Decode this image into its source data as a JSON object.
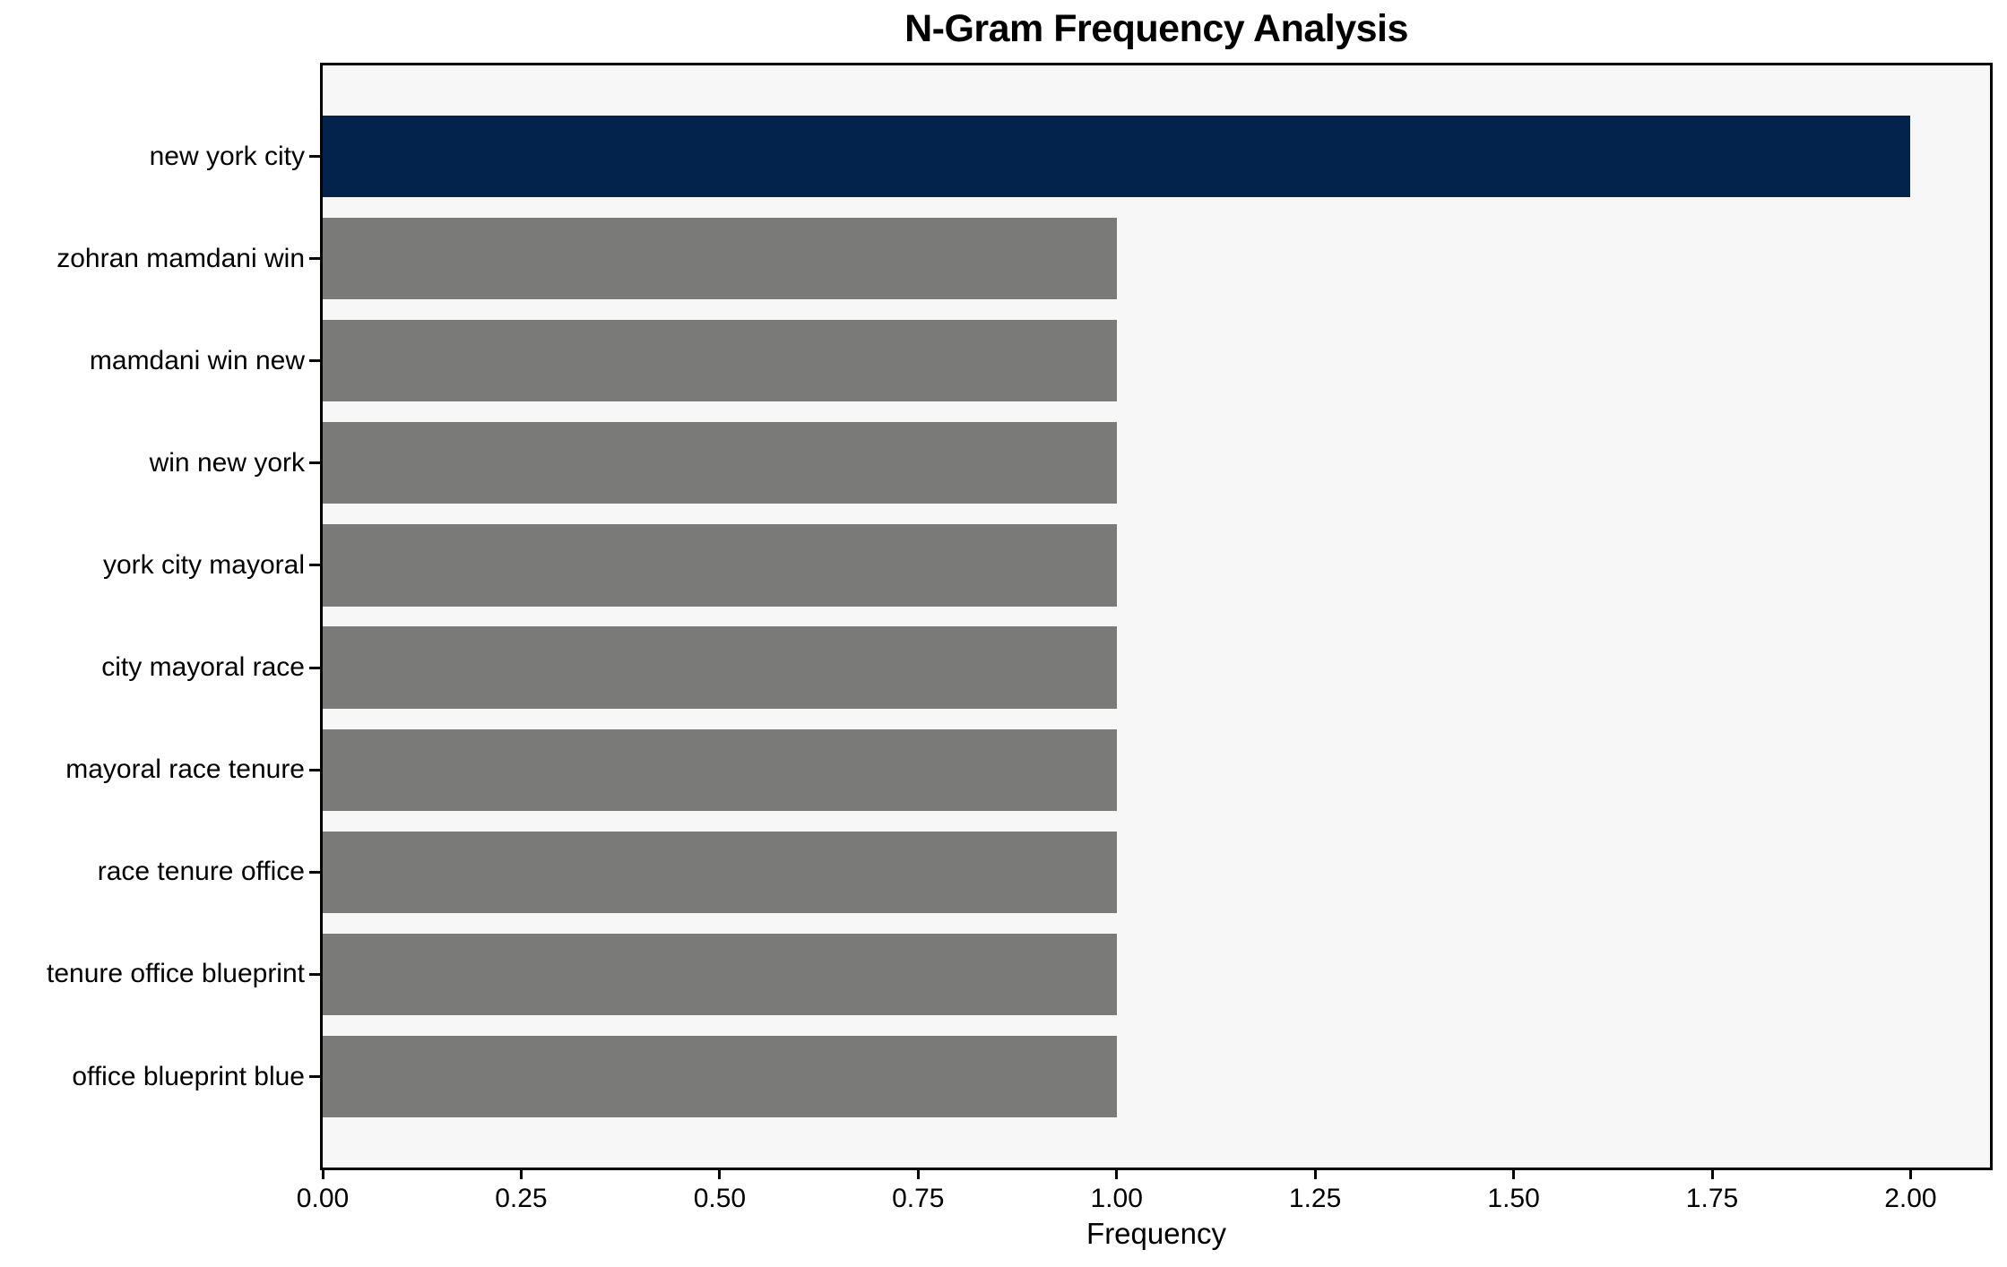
{
  "chart_data": {
    "type": "bar",
    "orientation": "horizontal",
    "title": "N-Gram Frequency Analysis",
    "xlabel": "Frequency",
    "ylabel": "",
    "categories": [
      "new york city",
      "zohran mamdani win",
      "mamdani win new",
      "win new york",
      "york city mayoral",
      "city mayoral race",
      "mayoral race tenure",
      "race tenure office",
      "tenure office blueprint",
      "office blueprint blue"
    ],
    "values": [
      2,
      1,
      1,
      1,
      1,
      1,
      1,
      1,
      1,
      1
    ],
    "bar_colors": [
      "#03224c",
      "#7a7a78",
      "#7a7a78",
      "#7a7a78",
      "#7a7a78",
      "#7a7a78",
      "#7a7a78",
      "#7a7a78",
      "#7a7a78",
      "#7a7a78"
    ],
    "highlight_color": "#03224c",
    "default_bar_color": "#7a7a78",
    "xlim": [
      0,
      2.1
    ],
    "xtick_values": [
      0,
      0.25,
      0.5,
      0.75,
      1.0,
      1.25,
      1.5,
      1.75,
      2.0
    ],
    "xtick_labels": [
      "0.00",
      "0.25",
      "0.50",
      "0.75",
      "1.00",
      "1.25",
      "1.50",
      "1.75",
      "2.00"
    ],
    "grid": false,
    "legend": "none",
    "plot_background": "#f7f7f7",
    "figure_background": "#ffffff",
    "axis_color": "#000000"
  }
}
